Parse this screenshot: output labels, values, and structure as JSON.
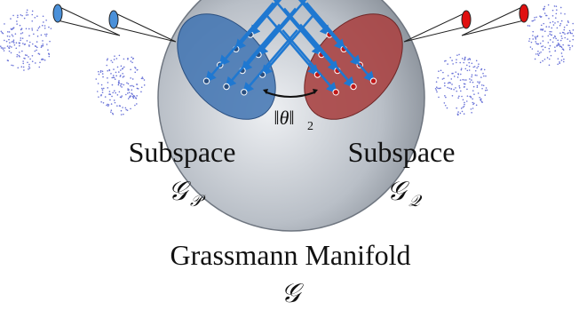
{
  "labels": {
    "norm": {
      "text": "‖θ‖",
      "subscript": "2"
    },
    "left": {
      "title": "Subspace",
      "symbol": "𝒢",
      "subscript": "𝒫"
    },
    "right": {
      "title": "Subspace",
      "symbol": "𝒢",
      "subscript": "𝒬"
    },
    "manifold": {
      "title": "Grassmann Manifold",
      "symbol": "𝒢"
    }
  }
}
